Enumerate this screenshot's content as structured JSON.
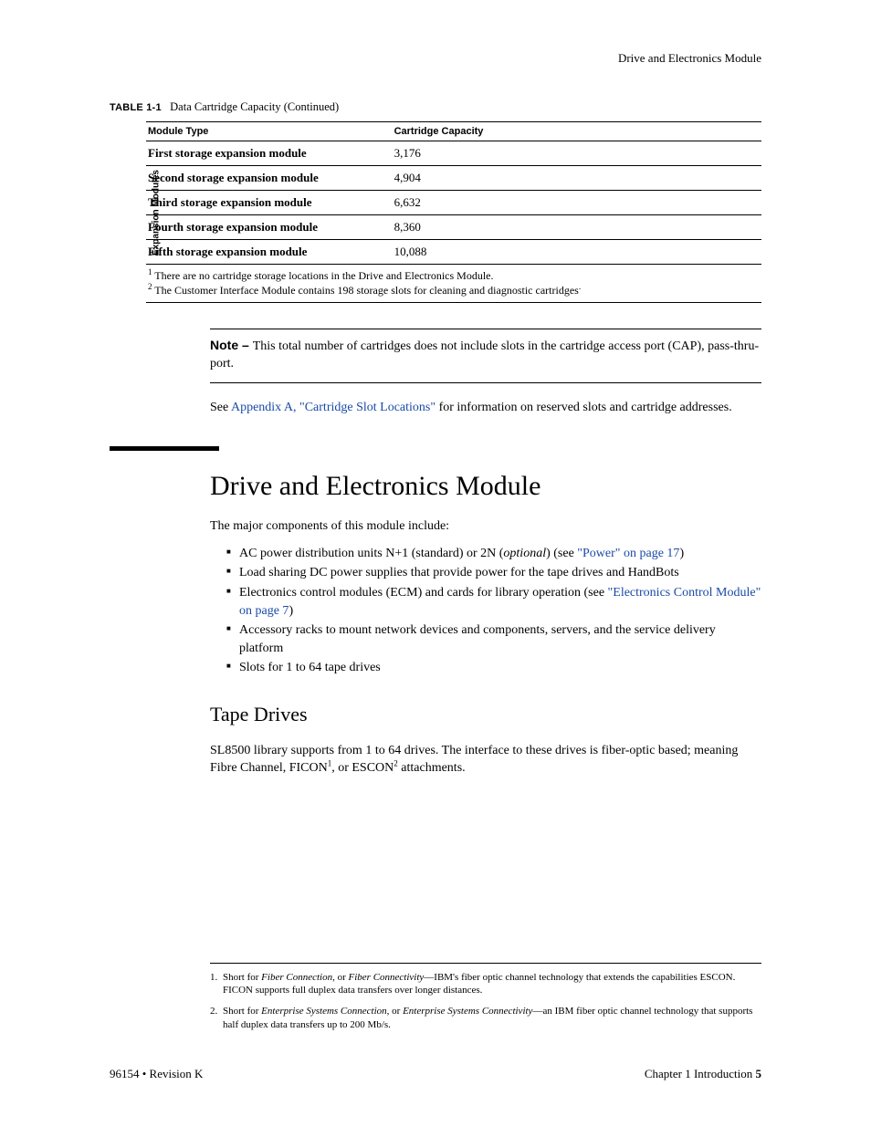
{
  "running_head": "Drive and Electronics Module",
  "table": {
    "caption_label": "TABLE 1-1",
    "caption_text": "Data Cartridge Capacity  (Continued)",
    "vertical_label": "Expansion Modules",
    "headers": [
      "Module Type",
      "Cartridge Capacity"
    ],
    "rows": [
      {
        "module": "First storage expansion module",
        "capacity": "3,176"
      },
      {
        "module": "Second storage expansion module",
        "capacity": "4,904"
      },
      {
        "module": "Third storage expansion module",
        "capacity": "6,632"
      },
      {
        "module": "Fourth storage expansion module",
        "capacity": "8,360"
      },
      {
        "module": "Fifth storage expansion module",
        "capacity": "10,088"
      }
    ],
    "footnote1_sup": "1",
    "footnote1": " There are no cartridge storage locations in the Drive and Electronics Module.",
    "footnote2_sup": "2",
    "footnote2": " The Customer Interface Module contains 198 storage slots for cleaning and diagnostic cartridges",
    "footnote2_trail": "."
  },
  "note": {
    "label": "Note – ",
    "text": "This total number of cartridges does not include slots in the cartridge access port (CAP), pass-thru-port."
  },
  "see_para": {
    "pre": "See ",
    "link": "Appendix A, \"Cartridge Slot Locations\"",
    "post": " for information on reserved slots and cartridge addresses."
  },
  "section_title": "Drive and Electronics Module",
  "section_intro": "The major components of this module include:",
  "bullets": {
    "b1_pre": "AC power distribution units N+1 (standard) or 2N (",
    "b1_ital": "optional",
    "b1_mid": ") (see ",
    "b1_link": "\"Power\" on page 17",
    "b1_post": ")",
    "b2": "Load sharing DC power supplies that provide power for the tape drives and HandBots",
    "b3_pre": "Electronics control modules (ECM) and cards for library operation (see ",
    "b3_link": "\"Electronics Control Module\" on page 7",
    "b3_post": ")",
    "b4": "Accessory racks to mount network devices and components, servers, and the service delivery platform",
    "b5": "Slots for 1 to 64 tape drives"
  },
  "subsection_title": "Tape Drives",
  "tape_para": {
    "pre": "SL8500 library supports from 1 to 64 drives. The interface to these drives is fiber-optic based; meaning Fibre Channel, FICON",
    "sup1": "1",
    "mid": ", or ESCON",
    "sup2": "2",
    "post": " attachments."
  },
  "page_footnotes": {
    "f1_num": "1.",
    "f1_pre": "Short for ",
    "f1_i1": "Fiber Connection",
    "f1_mid": ", or ",
    "f1_i2": "Fiber Connectivity",
    "f1_post": "—IBM's fiber optic channel technology that extends the capabilities ESCON. FICON supports full duplex data transfers over longer distances.",
    "f2_num": "2.",
    "f2_pre": "Short for ",
    "f2_i1": "Enterprise Systems Connection",
    "f2_mid": ", or ",
    "f2_i2": "Enterprise Systems Connectivity",
    "f2_post": "—an IBM fiber optic channel technology that supports half duplex data transfers up to 200 Mb/s."
  },
  "footer": {
    "left": "96154 • Revision K",
    "right_pre": "Chapter 1 Introduction   ",
    "right_page": "5"
  }
}
